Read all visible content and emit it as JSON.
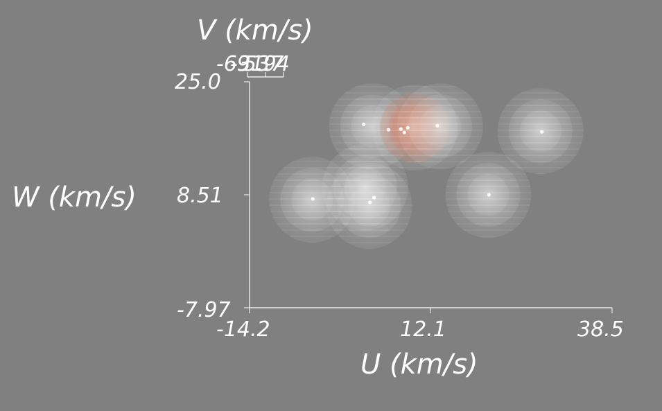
{
  "chart_data": {
    "type": "scatter",
    "title": "",
    "xlabel": "U (km/s)",
    "ylabel": "W (km/s)",
    "zlabel": "V (km/s)",
    "xlim": [
      -14.2,
      38.5
    ],
    "ylim": [
      -7.97,
      25.0
    ],
    "x_ticks": [
      "-14.2",
      "12.1",
      "38.5"
    ],
    "y_ticks": [
      "-7.97",
      "8.51",
      "25.0"
    ],
    "z_ticks_overlapping": [
      "-69.3",
      "-31.7",
      "5.94"
    ],
    "clusters": [
      {
        "u": 3.6,
        "w": 18.5,
        "core": "white",
        "density": "low"
      },
      {
        "u": 9.8,
        "w": 18.3,
        "core": "salmon",
        "density": "high"
      },
      {
        "u": 13.5,
        "w": 18.5,
        "core": "white",
        "density": "low"
      },
      {
        "u": 28.1,
        "w": 17.8,
        "core": "white",
        "density": "low"
      },
      {
        "u": -5.1,
        "w": 7.8,
        "core": "white",
        "density": "low"
      },
      {
        "u": 3.2,
        "w": 6.9,
        "core": "white",
        "density": "low"
      },
      {
        "u": 2.6,
        "w": 9.6,
        "core": "white",
        "density": "low"
      },
      {
        "u": 20.5,
        "w": 8.5,
        "core": "white",
        "density": "low"
      }
    ],
    "stars": [
      {
        "u": 2.4,
        "w": 18.8
      },
      {
        "u": 6.0,
        "w": 18.0
      },
      {
        "u": 7.8,
        "w": 18.1
      },
      {
        "u": 8.3,
        "w": 17.6
      },
      {
        "u": 8.8,
        "w": 18.3
      },
      {
        "u": 13.1,
        "w": 18.6
      },
      {
        "u": 28.3,
        "w": 17.7
      },
      {
        "u": -5.0,
        "w": 7.9
      },
      {
        "u": 3.3,
        "w": 7.4
      },
      {
        "u": 3.9,
        "w": 8.1
      },
      {
        "u": 20.6,
        "w": 8.5
      }
    ],
    "grid": false,
    "colors": {
      "background": "#808080",
      "hull_white": "#e4e2e2",
      "hull_salmon": "#d9836a",
      "axes": "#ffffff"
    }
  }
}
